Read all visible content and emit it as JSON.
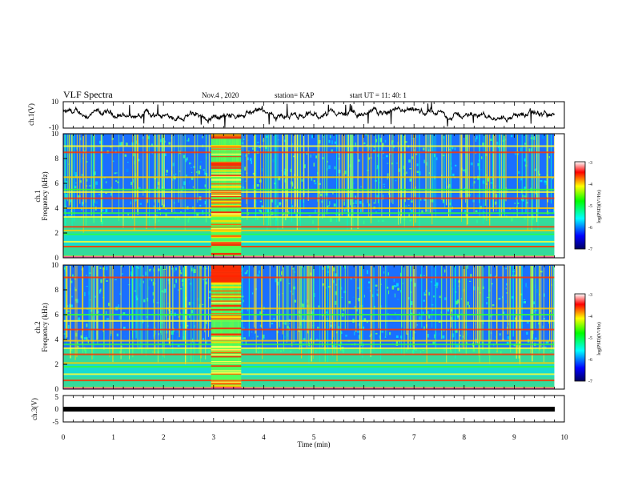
{
  "header": {
    "title": "VLF Spectra",
    "date": "Nov.4 , 2020",
    "station": "station= KAP",
    "start_time": "start UT = 11: 40: 1"
  },
  "chart_data": [
    {
      "type": "line",
      "panel": "ch1-waveform",
      "ylabel": "ch.1(V)",
      "ylim": [
        -10,
        10
      ],
      "y_ticks": [
        "10",
        "-10"
      ],
      "xlim": [
        0,
        10
      ],
      "color": "#000000"
    },
    {
      "type": "heatmap",
      "panel": "ch1-spectrogram",
      "ylabel": "ch.1",
      "ylabel2": "Frequency (kHz)",
      "ylim": [
        0,
        10
      ],
      "y_ticks": [
        "0",
        "2",
        "4",
        "6",
        "8",
        "10"
      ],
      "xlim": [
        0,
        10
      ],
      "colorbar": {
        "label": "log(PSD)(V²/Hz)",
        "range": [
          -7,
          -3
        ],
        "ticks": [
          "-3",
          "-4",
          "-5",
          "-6",
          "-7"
        ]
      },
      "bands_khz": [
        0.1,
        0.9,
        1.3,
        1.9,
        2.2,
        2.5,
        3.3,
        3.6,
        4.0,
        4.8,
        5.3,
        5.5,
        6.5,
        8.5,
        9.0
      ]
    },
    {
      "type": "heatmap",
      "panel": "ch2-spectrogram",
      "ylabel": "ch.2",
      "ylabel2": "Frequency (kHz)",
      "ylim": [
        0,
        10
      ],
      "y_ticks": [
        "0",
        "2",
        "4",
        "6",
        "8",
        "10"
      ],
      "xlim": [
        0,
        10
      ],
      "colorbar": {
        "label": "log(PSD)(V²/Hz)",
        "range": [
          -7,
          -3
        ],
        "ticks": [
          "-3",
          "-4",
          "-5",
          "-6",
          "-7"
        ]
      },
      "bands_khz": [
        0.1,
        0.7,
        1.2,
        1.8,
        2.1,
        2.8,
        3.3,
        3.6,
        3.9,
        4.8,
        5.5,
        6.0,
        6.5,
        9.0
      ]
    },
    {
      "type": "line",
      "panel": "ch3-waveform",
      "ylabel": "ch.3(V)",
      "ylim": [
        -5,
        5
      ],
      "y_ticks": [
        "5",
        "0",
        "-5"
      ],
      "xlim": [
        0,
        10
      ],
      "level": 0,
      "color": "#000000"
    }
  ],
  "x_axis": {
    "label": "Time (min)",
    "ticks": [
      "0",
      "1",
      "2",
      "3",
      "4",
      "5",
      "6",
      "7",
      "8",
      "9",
      "10"
    ]
  },
  "burst_interval_min": [
    2.95,
    3.55
  ]
}
